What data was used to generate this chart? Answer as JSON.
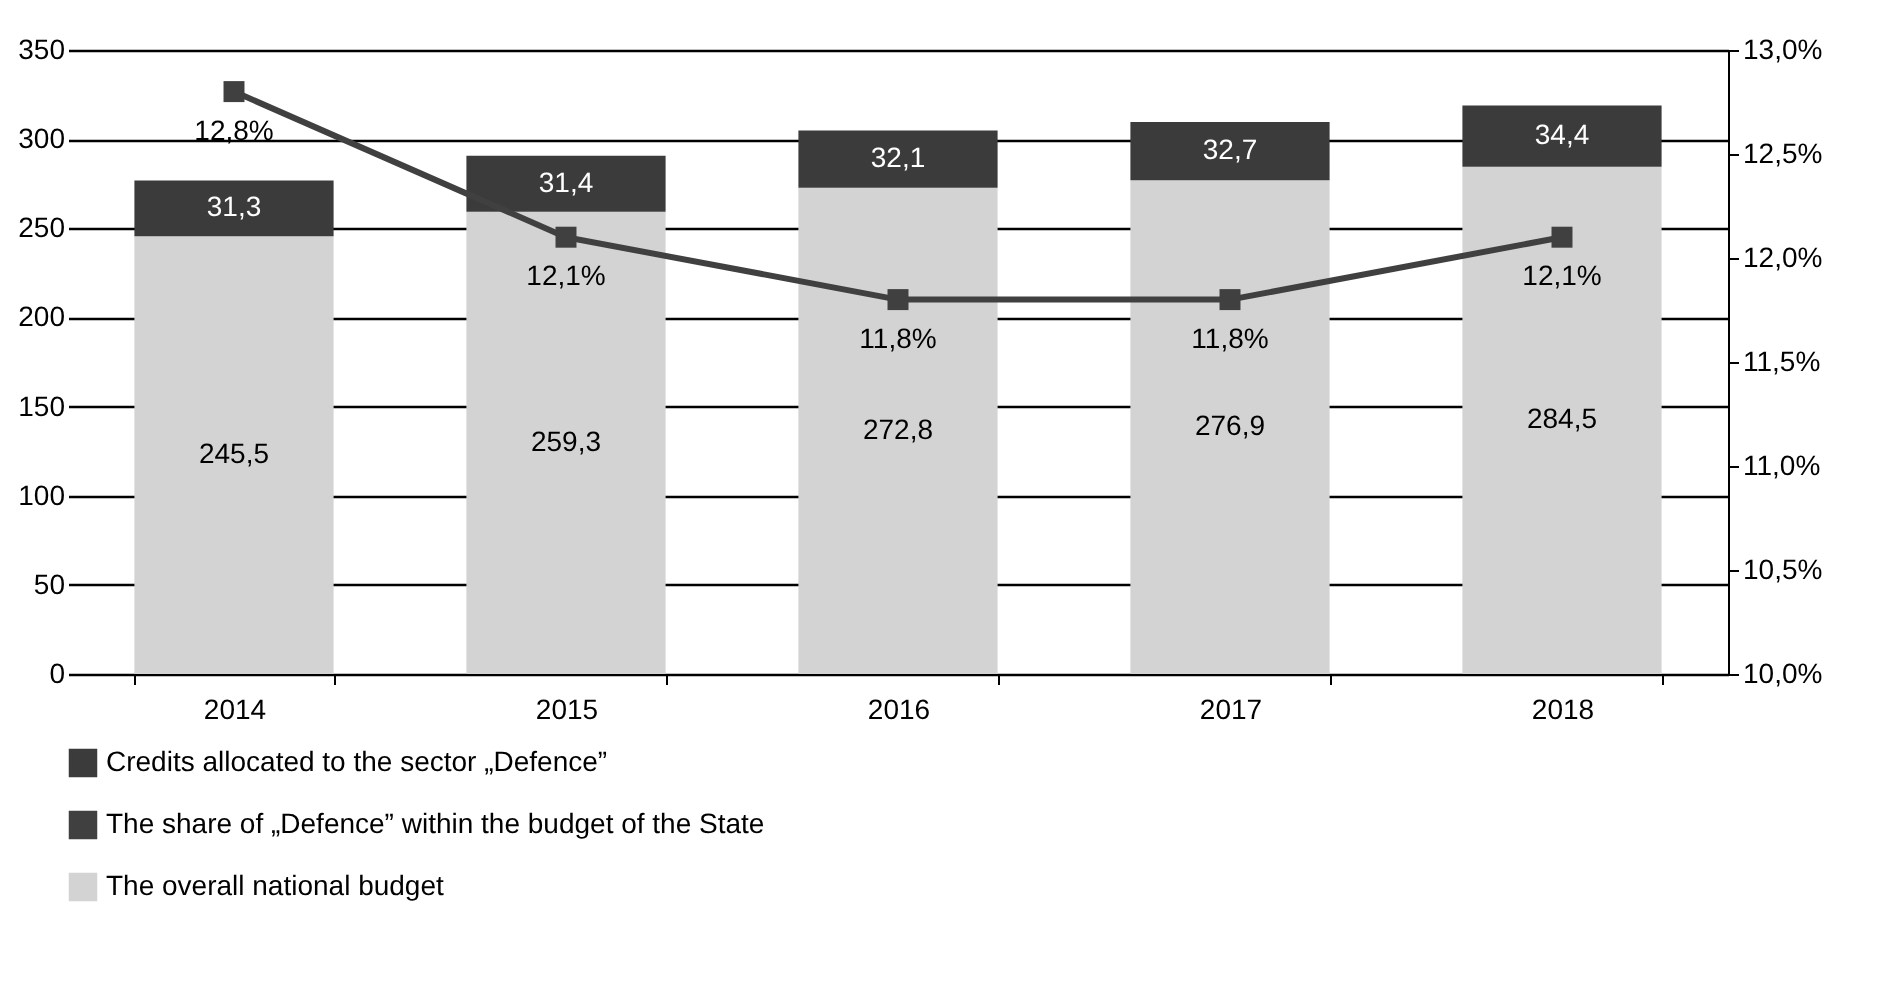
{
  "chart_data": {
    "type": "bar",
    "stacked": true,
    "categories": [
      "2014",
      "2015",
      "2016",
      "2017",
      "2018"
    ],
    "series": [
      {
        "name": "The overall national budget",
        "color": "#d3d3d3",
        "values": [
          245.5,
          259.3,
          272.8,
          276.9,
          284.5
        ],
        "value_labels": [
          "245,5",
          "259,3",
          "272,8",
          "276,9",
          "284,5"
        ]
      },
      {
        "name": "Credits allocated to the sector „Defence”",
        "color": "#3b3b3b",
        "values": [
          31.3,
          31.4,
          32.1,
          32.7,
          34.4
        ],
        "value_labels": [
          "31,3",
          "31,4",
          "32,1",
          "32,7",
          "34,4"
        ]
      },
      {
        "name": "The share of „Defence” within the budget of the State",
        "type": "line",
        "axis": "y2",
        "color": "#404040",
        "marker": "square",
        "values": [
          12.8,
          12.1,
          11.8,
          11.8,
          12.1
        ],
        "value_labels": [
          "12,8%",
          "12,1%",
          "11,8%",
          "11,8%",
          "12,1%"
        ]
      }
    ],
    "ylim": [
      0,
      350
    ],
    "yticks": [
      0,
      50,
      100,
      150,
      200,
      250,
      300,
      350
    ],
    "y2lim": [
      10,
      13
    ],
    "y2ticks": [
      {
        "value": 10,
        "label": "10,0%"
      },
      {
        "value": 10.5,
        "label": "10,5%"
      },
      {
        "value": 11,
        "label": "11,0%"
      },
      {
        "value": 11.5,
        "label": "11,5%"
      },
      {
        "value": 12,
        "label": "12,0%"
      },
      {
        "value": 12.5,
        "label": "12,5%"
      },
      {
        "value": 13,
        "label": "13,0%"
      }
    ],
    "grid": "y",
    "legend": "bottom"
  }
}
